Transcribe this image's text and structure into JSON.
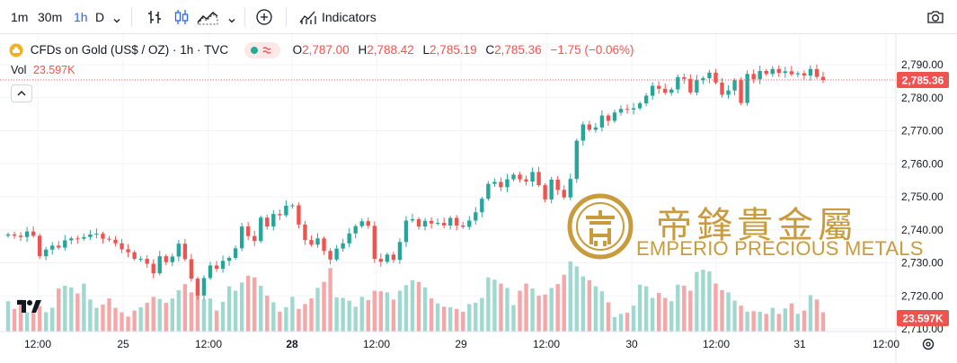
{
  "toolbar": {
    "intervals": [
      "1m",
      "30m",
      "1h",
      "D"
    ],
    "active_interval": "1h",
    "indicators_label": "Indicators"
  },
  "legend": {
    "symbol": "CFDs on Gold (US$ / OZ) · 1h · TVC",
    "open_label": "O",
    "open": "2,787.00",
    "high_label": "H",
    "high": "2,788.42",
    "low_label": "L",
    "low": "2,785.19",
    "close_label": "C",
    "close": "2,785.36",
    "change": "−1.75 (−0.06%)",
    "vol_label": "Vol",
    "vol_value": "23.597K"
  },
  "watermark": {
    "chinese": "帝鋒貴金屬",
    "english": "EMPERIO PRECIOUS METALS"
  },
  "colors": {
    "up": "#26a69a",
    "down": "#ef5350",
    "up_vol": "#9fd8cf",
    "down_vol": "#f5a6a6",
    "gold": "#c89b3c",
    "grid": "#f0f3fa"
  },
  "chart_data": {
    "type": "candlestick",
    "y_ticks": [
      "2,790.00",
      "2,780.00",
      "2,770.00",
      "2,760.00",
      "2,750.00",
      "2,740.00",
      "2,730.00",
      "2,720.00",
      "2,710.00"
    ],
    "y_tick_values": [
      2790,
      2780,
      2770,
      2760,
      2750,
      2740,
      2730,
      2720,
      2710
    ],
    "ylim": [
      2706,
      2795
    ],
    "x_ticks": [
      "12:00",
      "25",
      "12:00",
      "28",
      "12:00",
      "29",
      "12:00",
      "30",
      "12:00",
      "31",
      "12:00"
    ],
    "x_tick_bold": [
      false,
      false,
      false,
      true,
      false,
      false,
      false,
      false,
      false,
      false,
      false
    ],
    "last_price_label": "2,785.36",
    "last_price": 2785.36,
    "volume_label": "23.597K",
    "closes": [
      2738.6,
      2738.2,
      2737.8,
      2739.5,
      2738.2,
      2732.0,
      2734.0,
      2735.2,
      2734.6,
      2736.8,
      2737.4,
      2737.3,
      2737.8,
      2738.6,
      2738.8,
      2737.3,
      2737.0,
      2735.9,
      2734.1,
      2733.2,
      2731.2,
      2731.2,
      2729.7,
      2726.8,
      2732.0,
      2730.2,
      2731.9,
      2735.8,
      2731.1,
      2725.2,
      2720.1,
      2725.4,
      2729.2,
      2728.2,
      2730.6,
      2731.5,
      2734.4,
      2741.0,
      2738.1,
      2736.6,
      2743.7,
      2741.0,
      2744.8,
      2744.4,
      2747.3,
      2747.4,
      2741.6,
      2736.9,
      2735.5,
      2737.4,
      2733.6,
      2731.0,
      2734.3,
      2735.9,
      2738.9,
      2741.1,
      2742.6,
      2741.2,
      2731.2,
      2730.3,
      2732.5,
      2730.9,
      2736.3,
      2742.8,
      2743.2,
      2741.0,
      2742.7,
      2741.9,
      2742.1,
      2741.3,
      2743.6,
      2741.3,
      2740.9,
      2742.8,
      2745.3,
      2749.4,
      2753.9,
      2754.5,
      2752.9,
      2755.3,
      2756.7,
      2755.3,
      2754.6,
      2757.5,
      2753.5,
      2749.2,
      2755.2,
      2752.1,
      2749.8,
      2755.4,
      2767.0,
      2771.9,
      2770.3,
      2771.0,
      2774.6,
      2773.0,
      2775.5,
      2776.6,
      2776.4,
      2776.8,
      2778.3,
      2780.6,
      2783.6,
      2782.7,
      2781.5,
      2782.5,
      2786.2,
      2785.7,
      2781.6,
      2785.3,
      2785.9,
      2787.6,
      2784.6,
      2780.9,
      2782.2,
      2785.3,
      2778.4,
      2787.2,
      2785.6,
      2788.1,
      2787.2,
      2788.7,
      2787.5,
      2788.0,
      2787.1,
      2787.4,
      2786.7,
      2788.7,
      2786.3,
      2785.36
    ],
    "volumes": [
      5.5,
      4.1,
      5.8,
      3.5,
      3.4,
      4.6,
      3.5,
      4.3,
      7.8,
      8.3,
      8.0,
      6.9,
      8.7,
      5.8,
      4.3,
      4.9,
      6.0,
      4.3,
      3.5,
      2.7,
      3.8,
      4.4,
      5.2,
      6.3,
      5.9,
      5.2,
      6.0,
      7.5,
      8.6,
      7.1,
      7.9,
      5.8,
      6.0,
      3.8,
      5.4,
      8.2,
      7.4,
      8.9,
      10.1,
      9.8,
      8.3,
      6.5,
      5.3,
      3.6,
      4.4,
      6.3,
      4.1,
      5.0,
      6.0,
      7.9,
      9.0,
      11.5,
      6.2,
      6.1,
      5.6,
      4.5,
      6.3,
      5.7,
      7.4,
      7.3,
      7.1,
      5.8,
      7.4,
      8.4,
      9.3,
      9.0,
      8.0,
      6.0,
      5.1,
      4.5,
      4.4,
      4.1,
      3.6,
      5.0,
      5.2,
      6.1,
      9.8,
      9.4,
      8.7,
      7.9,
      4.8,
      7.4,
      8.7,
      7.8,
      6.5,
      6.7,
      7.9,
      8.6,
      10.3,
      12.7,
      11.8,
      10.0,
      9.3,
      8.2,
      7.3,
      5.3,
      2.6,
      3.2,
      3.4,
      4.7,
      8.5,
      8.2,
      6.1,
      7.0,
      6.1,
      5.5,
      8.5,
      8.3,
      7.4,
      10.8,
      11.2,
      10.9,
      8.7,
      7.5,
      7.1,
      5.6,
      4.7,
      3.6,
      3.7,
      3.6,
      3.2,
      4.3,
      3.2,
      4.2,
      5.1,
      3.2,
      3.8,
      6.6,
      5.8,
      3.5
    ]
  }
}
